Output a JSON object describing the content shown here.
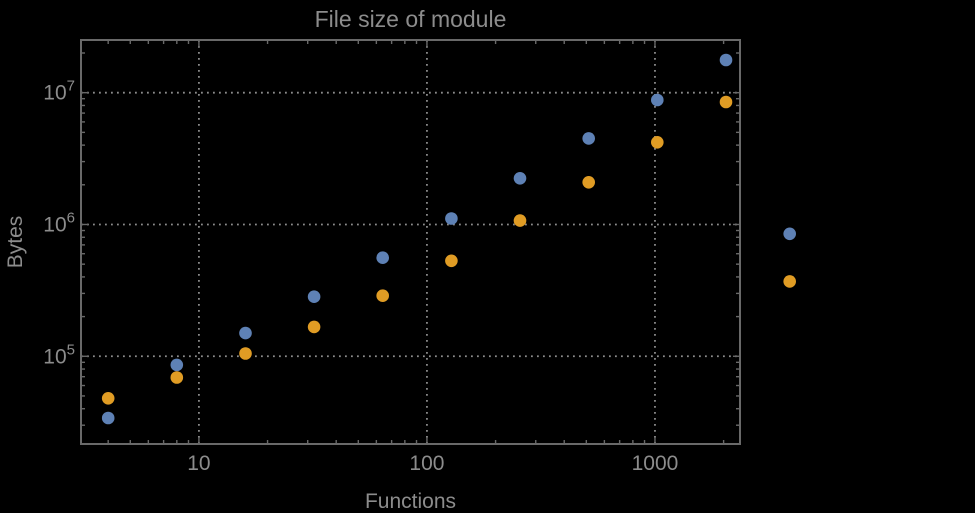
{
  "chart_data": {
    "type": "scatter",
    "title": "File size of module",
    "x_axis": {
      "label": "Functions",
      "scale": "log",
      "range": [
        3.04,
        2360
      ],
      "major_ticks": [
        10,
        100,
        1000
      ],
      "tick_labels": [
        "10",
        "100",
        "1000"
      ]
    },
    "y_axis": {
      "label": "Bytes",
      "scale": "log",
      "range": [
        21600,
        25100000
      ],
      "major_ticks": [
        100000,
        1000000,
        10000000
      ],
      "tick_labels": [
        {
          "base": "10",
          "exp": "5"
        },
        {
          "base": "10",
          "exp": "6"
        },
        {
          "base": "10",
          "exp": "7"
        }
      ]
    },
    "grid": true,
    "legend": "none",
    "series": [
      {
        "name": "blue",
        "color": "#5e81b5",
        "x": [
          4,
          8,
          16,
          32,
          64,
          128,
          256,
          512,
          1024,
          2048,
          3900
        ],
        "y": [
          34000,
          86000,
          150000,
          283000,
          560000,
          1110000,
          2240000,
          4500000,
          8800000,
          17700000,
          850000
        ]
      },
      {
        "name": "orange",
        "color": "#e09c24",
        "x": [
          4,
          8,
          16,
          32,
          64,
          128,
          256,
          512,
          1024,
          2048,
          3900
        ],
        "y": [
          48000,
          69000,
          105000,
          167000,
          288000,
          530000,
          1070000,
          2090000,
          4200000,
          8500000,
          370000
        ]
      }
    ]
  },
  "colors": {
    "background": "#000000",
    "frame": "#696969",
    "grid": "#8c8c8c",
    "text": "#8c8c8c"
  }
}
